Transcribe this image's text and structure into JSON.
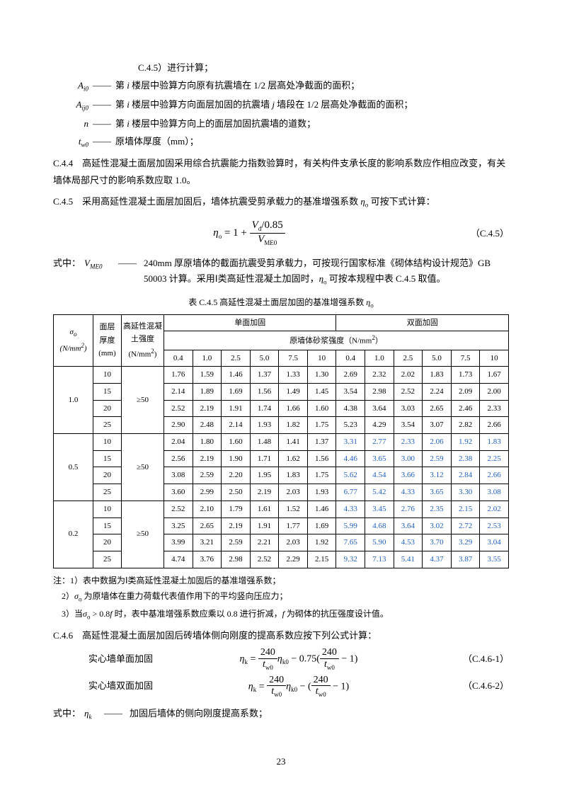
{
  "top_cont": "C.4.5）进行计算；",
  "defs": [
    {
      "sym": "A<sub>i0</sub>",
      "text": "第 <i>i</i> 楼层中验算方向原有抗震墙在 1/2 层高处净截面的面积；"
    },
    {
      "sym": "A<sub>ij0</sub>",
      "text": "第 <i>i</i> 楼层中验算方向面层加固的抗震墙 <i>j</i> 墙段在 1/2 层高处净截面的面积；"
    },
    {
      "sym": "n",
      "text": "第 <i>i</i> 楼层中验算方向上的面层加固抗震墙的道数；"
    },
    {
      "sym": "t<sub>w0</sub>",
      "text": "原墙体厚度（mm）；"
    }
  ],
  "para_c44": "C.4.4　高延性混凝土面层加固采用综合抗震能力指数验算时，有关构件支承长度的影响系数应作相应改变，有关墙体局部尺寸的影响系数应取 1.0。",
  "para_c45": "C.4.5　采用高延性混凝土面层加固后，墙体抗震受剪承载力的基准增强系数 <i>η</i><sub>o</sub> 可按下式计算：",
  "formula_c45": {
    "eq": "<i>η</i><sub>o</sub> = 1 + <span class=\"frac\"><span class=\"num\"><i>V</i><sub>d</sub>/0.85</span><span class=\"den\"><i>V</i><sub>ME0</sub></span></span>",
    "label": "（C.4.5）"
  },
  "where_c45": {
    "prefix": "式中：",
    "sym": "V<sub>ME0</sub>",
    "text": "240mm 厚原墙体的截面抗震受剪承载力，可按现行国家标准《砌体结构设计规范》GB 50003 计算。采用Ⅰ类高延性混凝土加固时，<i>η</i><sub>o</sub> 可按本规程中表 C.4.5 取值。"
  },
  "table": {
    "title": "表 C.4.5 高延性混凝土面层加固的基准增强系数 <i>η</i><sub>o</sub>",
    "h_sigma": "<i>σ</i><sub>o</sub><br>(N/mm<sup>2</sup>)",
    "h_thick": "面层<br>厚度<br>(mm)",
    "h_strength": "高延性混凝<br>土强度<br>(N/mm<sup>2</sup>)",
    "h_single": "单面加固",
    "h_double": "双面加固",
    "h_mortar": "原墙体砂浆强度（N/mm<sup>2</sup>）",
    "col_values": [
      "0.4",
      "1.0",
      "2.5",
      "5.0",
      "7.5",
      "10",
      "0.4",
      "1.0",
      "2.5",
      "5.0",
      "7.5",
      "10"
    ],
    "groups": [
      {
        "sigma": "1.0",
        "strength": "≥50",
        "rows": [
          {
            "t": "10",
            "v": [
              "1.76",
              "1.59",
              "1.46",
              "1.37",
              "1.33",
              "1.30",
              "2.69",
              "2.32",
              "2.02",
              "1.83",
              "1.73",
              "1.67"
            ]
          },
          {
            "t": "15",
            "v": [
              "2.14",
              "1.89",
              "1.69",
              "1.56",
              "1.49",
              "1.45",
              "3.54",
              "2.98",
              "2.52",
              "2.24",
              "2.09",
              "2.00"
            ]
          },
          {
            "t": "20",
            "v": [
              "2.52",
              "2.19",
              "1.91",
              "1.74",
              "1.66",
              "1.60",
              "4.38",
              "3.64",
              "3.03",
              "2.65",
              "2.46",
              "2.33"
            ]
          },
          {
            "t": "25",
            "v": [
              "2.90",
              "2.48",
              "2.14",
              "1.93",
              "1.82",
              "1.75",
              "5.23",
              "4.29",
              "3.54",
              "3.07",
              "2.82",
              "2.66"
            ]
          }
        ]
      },
      {
        "sigma": "0.5",
        "strength": "≥50",
        "rows": [
          {
            "t": "10",
            "v": [
              "2.04",
              "1.80",
              "1.60",
              "1.48",
              "1.41",
              "1.37"
            ],
            "vb": [
              "3.31",
              "2.77",
              "2.33",
              "2.06",
              "1.92",
              "1.83"
            ]
          },
          {
            "t": "15",
            "v": [
              "2.56",
              "2.19",
              "1.90",
              "1.71",
              "1.62",
              "1.56"
            ],
            "vb": [
              "4.46",
              "3.65",
              "3.00",
              "2.59",
              "2.38",
              "2.25"
            ]
          },
          {
            "t": "20",
            "v": [
              "3.08",
              "2.59",
              "2.20",
              "1.95",
              "1.83",
              "1.75"
            ],
            "vb": [
              "5.62",
              "4.54",
              "3.66",
              "3.12",
              "2.84",
              "2.66"
            ]
          },
          {
            "t": "25",
            "v": [
              "3.60",
              "2.99",
              "2.50",
              "2.19",
              "2.03",
              "1.93"
            ],
            "vb": [
              "6.77",
              "5.42",
              "4.33",
              "3.65",
              "3.30",
              "3.08"
            ]
          }
        ]
      },
      {
        "sigma": "0.2",
        "strength": "≥50",
        "rows": [
          {
            "t": "10",
            "v": [
              "2.52",
              "2.10",
              "1.79",
              "1.61",
              "1.52",
              "1.46"
            ],
            "vb": [
              "4.33",
              "3.45",
              "2.76",
              "2.35",
              "2.15",
              "2.02"
            ]
          },
          {
            "t": "15",
            "v": [
              "3.25",
              "2.65",
              "2.19",
              "1.91",
              "1.77",
              "1.69"
            ],
            "vb": [
              "5.99",
              "4.68",
              "3.64",
              "3.02",
              "2.72",
              "2.53"
            ]
          },
          {
            "t": "20",
            "v": [
              "3.99",
              "3.21",
              "2.59",
              "2.21",
              "2.03",
              "1.92"
            ],
            "vb": [
              "7.65",
              "5.90",
              "4.53",
              "3.70",
              "3.29",
              "3.04"
            ]
          },
          {
            "t": "25",
            "v": [
              "4.74",
              "3.76",
              "2.98",
              "2.52",
              "2.29",
              "2.15"
            ],
            "vb": [
              "9.32",
              "7.13",
              "5.41",
              "4.37",
              "3.87",
              "3.55"
            ]
          }
        ]
      }
    ]
  },
  "notes": {
    "lead": "注：1）表中数据为Ⅰ类高延性混凝土加固后的基准增强系数；",
    "n2": "2）<i>σ</i><sub>o</sub> 为原墙体在重力荷载代表值作用下的平均竖向压应力；",
    "n3": "3）当<i>σ</i><sub>o</sub> > 0.8<i>f</i> 时，表中基准增强系数应乘以 0.8 进行折减，<i>f</i> 为砌体的抗压强度设计值。"
  },
  "para_c46": "C.4.6　高延性混凝土面层加固后砖墙体侧向刚度的提高系数应按下列公式计算：",
  "eq_c461": {
    "left": "实心墙单面加固",
    "eq": "<i>η</i><sub>k</sub> = <span class=\"frac\"><span class=\"num\">240</span><span class=\"den\"><i>t</i><sub>w0</sub></span></span><i>η</i><sub>k0</sub> − 0.75(<span class=\"frac\"><span class=\"num\">240</span><span class=\"den\"><i>t</i><sub>w0</sub></span></span> − 1)",
    "label": "（C.4.6-1）"
  },
  "eq_c462": {
    "left": "实心墙双面加固",
    "eq": "<i>η</i><sub>k</sub> = <span class=\"frac\"><span class=\"num\">240</span><span class=\"den\"><i>t</i><sub>w0</sub></span></span><i>η</i><sub>k0</sub> − (<span class=\"frac\"><span class=\"num\">240</span><span class=\"den\"><i>t</i><sub>w0</sub></span></span> − 1)",
    "label": "（C.4.6-2）"
  },
  "where_c46": {
    "prefix": "式中：",
    "sym": "η<sub>k</sub>",
    "text": "加固后墙体的侧向刚度提高系数；"
  },
  "page": "23"
}
